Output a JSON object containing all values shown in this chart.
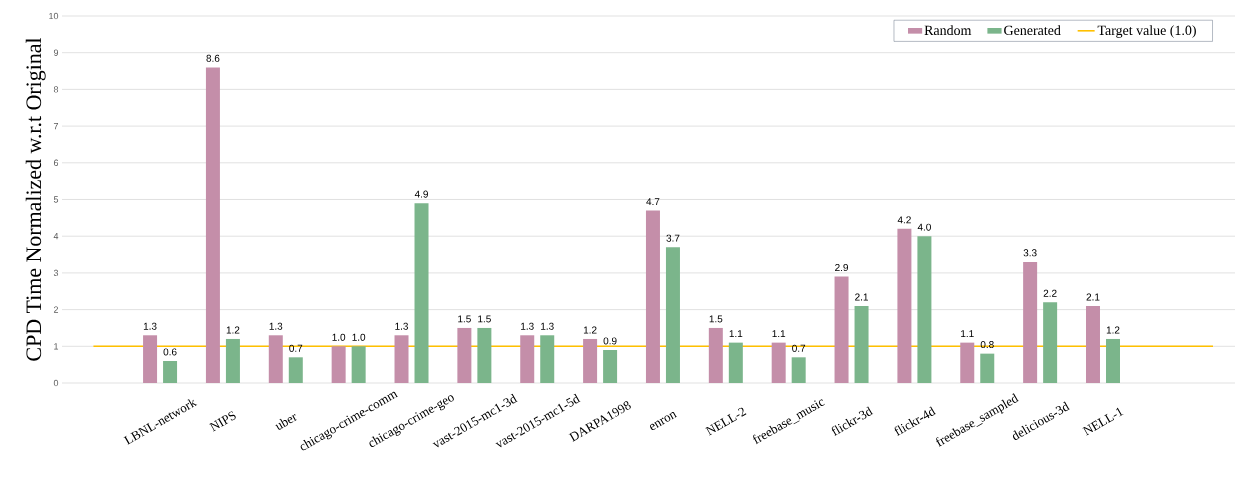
{
  "chart_data": {
    "type": "bar",
    "ylabel": "CPD Time Normalized w.r.t Original",
    "categories": [
      "LBNL-network",
      "NIPS",
      "uber",
      "chicago-crime-comm",
      "chicago-crime-geo",
      "vast-2015-mc1-3d",
      "vast-2015-mc1-5d",
      "DARPA1998",
      "enron",
      "NELL-2",
      "freebase_music",
      "flickr-3d",
      "flickr-4d",
      "freebase_sampled",
      "delicious-3d",
      "NELL-1"
    ],
    "series": [
      {
        "name": "Random",
        "color": "#c48ea9",
        "values": [
          1.3,
          8.6,
          1.3,
          1.0,
          1.3,
          1.5,
          1.3,
          1.2,
          4.7,
          1.5,
          1.1,
          2.9,
          4.2,
          1.1,
          3.3,
          2.1
        ],
        "value_labels": [
          "1.3",
          "8.6",
          "1.3",
          "1.0",
          "1.3",
          "1.5",
          "1.3",
          "1.2",
          "4.7",
          "1.5",
          "1.1",
          "2.9",
          "4.2",
          "1.1",
          "3.3",
          "2.1"
        ]
      },
      {
        "name": "Generated",
        "color": "#7bb58b",
        "values": [
          0.6,
          1.2,
          0.7,
          1.0,
          4.9,
          1.5,
          1.3,
          0.9,
          3.7,
          1.1,
          0.7,
          2.1,
          4.0,
          0.8,
          2.2,
          1.2
        ],
        "value_labels": [
          "0.6",
          "1.2",
          "0.7",
          "1.0",
          "4.9",
          "1.5",
          "1.3",
          "0.9",
          "3.7",
          "1.1",
          "0.7",
          "2.1",
          "4.0",
          "0.8",
          "2.2",
          "1.2"
        ]
      }
    ],
    "ylim": [
      0,
      10
    ],
    "yticks": [
      0,
      1,
      2,
      3,
      4,
      5,
      6,
      7,
      8,
      9,
      10
    ],
    "ref_lines": [
      {
        "axis": "y",
        "value": 1,
        "label": "Target value (1.0)",
        "color": "#ffc000"
      }
    ],
    "grid": "y",
    "legend": "top right"
  }
}
